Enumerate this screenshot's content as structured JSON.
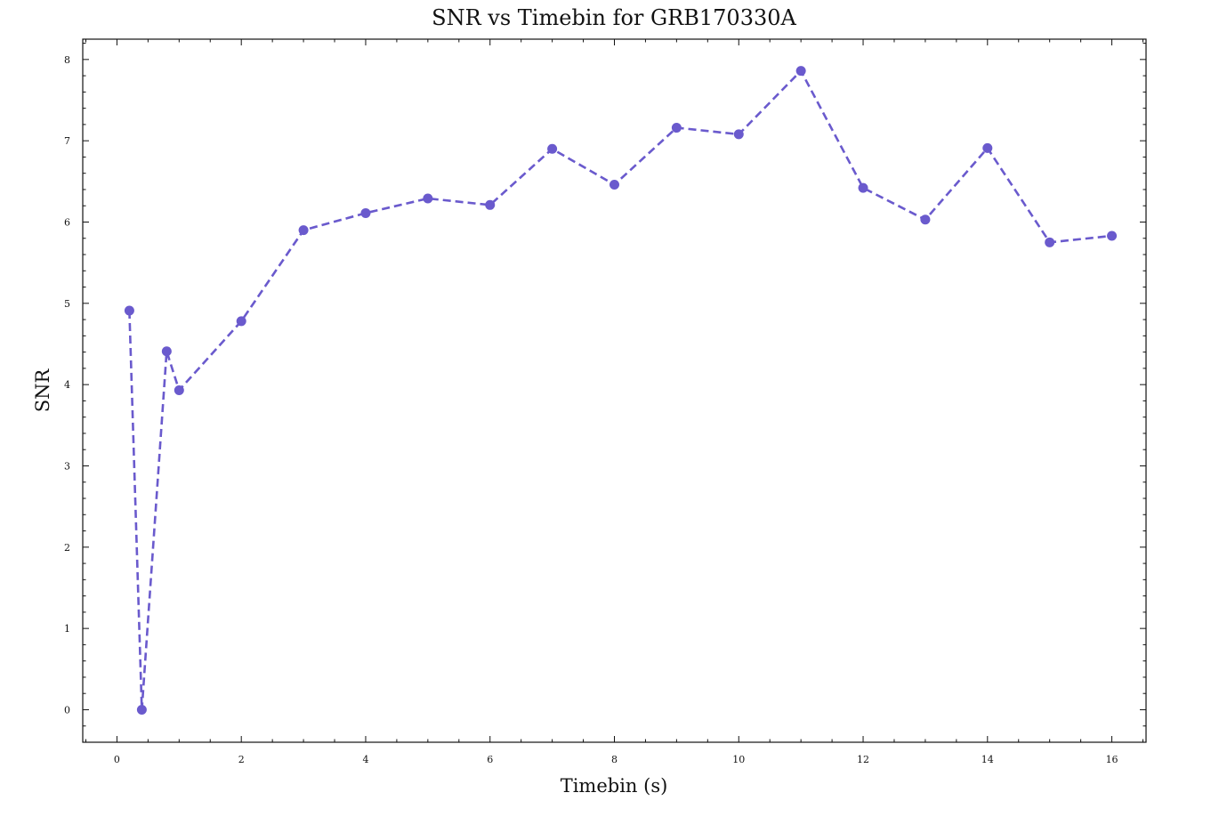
{
  "chart_data": {
    "type": "line",
    "title": "SNR vs Timebin for GRB170330A",
    "xlabel": "Timebin (s)",
    "ylabel": "SNR",
    "xlim": [
      -0.55,
      16.55
    ],
    "ylim": [
      -0.4,
      8.25
    ],
    "xticks": [
      0,
      2,
      4,
      6,
      8,
      10,
      12,
      14,
      16
    ],
    "xtick_labels": [
      "0",
      "2",
      "4",
      "6",
      "8",
      "10",
      "12",
      "14",
      "16"
    ],
    "yticks": [
      0,
      1,
      2,
      3,
      4,
      5,
      6,
      7,
      8
    ],
    "ytick_labels": [
      "0",
      "1",
      "2",
      "3",
      "4",
      "5",
      "6",
      "7",
      "8"
    ],
    "grid": false,
    "series": [
      {
        "color": "#6a5acd",
        "line_style": "dashed",
        "marker": "circle",
        "x": [
          0.2,
          0.4,
          0.8,
          1,
          2,
          3,
          4,
          5,
          6,
          7,
          8,
          9,
          10,
          11,
          12,
          13,
          14,
          15,
          16
        ],
        "y": [
          4.91,
          0.0,
          4.41,
          3.93,
          4.78,
          5.9,
          6.11,
          6.29,
          6.21,
          6.9,
          6.46,
          7.16,
          7.08,
          7.86,
          6.42,
          6.03,
          6.91,
          5.75,
          5.83
        ]
      }
    ]
  }
}
